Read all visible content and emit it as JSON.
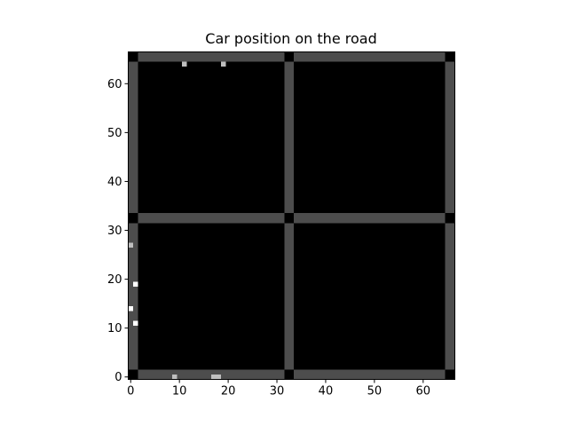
{
  "chart_data": {
    "type": "heatmap",
    "title": "Car position on the road",
    "xlabel": "",
    "ylabel": "",
    "grid": false,
    "xlim": [
      -0.5,
      66.5
    ],
    "ylim": [
      -0.5,
      66.5
    ],
    "xticks": [
      "0",
      "10",
      "20",
      "30",
      "40",
      "50",
      "60"
    ],
    "yticks": [
      "0",
      "10",
      "20",
      "30",
      "40",
      "50",
      "60"
    ],
    "grid_size": 67,
    "colors": {
      "background": "#000000",
      "road": "#4d4d4d",
      "car_light": "#bfbfbf",
      "car_white": "#ffffff"
    },
    "roads": {
      "horizontal_rows": [
        [
          0,
          1
        ],
        [
          32,
          33
        ],
        [
          65,
          66
        ]
      ],
      "vertical_cols": [
        [
          0,
          1
        ],
        [
          32,
          33
        ],
        [
          65,
          66
        ]
      ],
      "intersections_black": true
    },
    "cars": [
      {
        "x": 11,
        "y": 64,
        "shade": "light"
      },
      {
        "x": 19,
        "y": 64,
        "shade": "light"
      },
      {
        "x": 0,
        "y": 27,
        "shade": "light"
      },
      {
        "x": 1,
        "y": 19,
        "shade": "white"
      },
      {
        "x": 0,
        "y": 14,
        "shade": "white"
      },
      {
        "x": 1,
        "y": 11,
        "shade": "white"
      },
      {
        "x": 9,
        "y": 0,
        "shade": "light"
      },
      {
        "x": 17,
        "y": 0,
        "shade": "light"
      },
      {
        "x": 18,
        "y": 0,
        "shade": "light"
      }
    ]
  }
}
